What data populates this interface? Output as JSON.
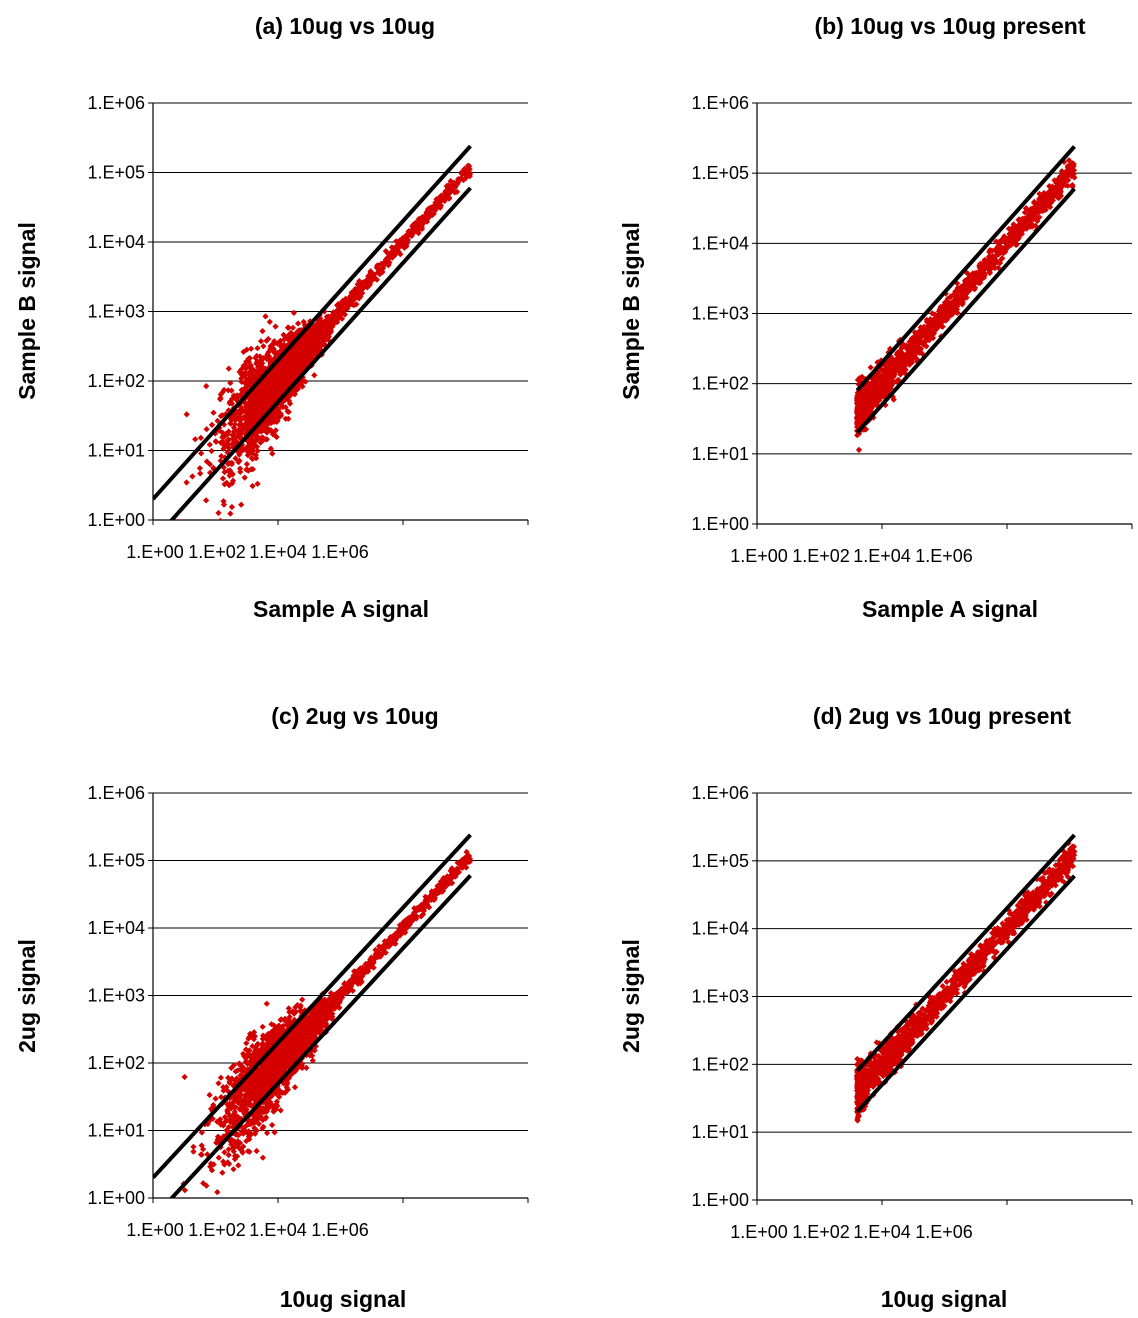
{
  "colors": {
    "points": "#d40000",
    "lines": "#000000",
    "grid": "#000000",
    "background": "#ffffff"
  },
  "chart_data": [
    {
      "type": "scatter",
      "title": "(a) 10ug vs 10ug",
      "xlabel": "Sample A signal",
      "ylabel": "Sample B signal",
      "scale": "log",
      "xlim": [
        1,
        1000000
      ],
      "ylim": [
        1,
        1000000
      ],
      "x_ticks": [
        "1.E+00",
        "1.E+02",
        "1.E+04",
        "1.E+06"
      ],
      "y_ticks": [
        "1.E+00",
        "1.E+01",
        "1.E+02",
        "1.E+03",
        "1.E+04",
        "1.E+05",
        "1.E+06"
      ],
      "grid": "horizontal",
      "point_range": [
        1,
        120000
      ],
      "reference_lines": [
        {
          "x": [
            1,
            120000
          ],
          "y": [
            2,
            240000
          ]
        },
        {
          "x": [
            1,
            120000
          ],
          "y": [
            0.5,
            60000
          ]
        }
      ]
    },
    {
      "type": "scatter",
      "title": "(b) 10ug vs 10ug present",
      "xlabel": "Sample A signal",
      "ylabel": "Sample B signal",
      "scale": "log",
      "xlim": [
        1,
        1000000
      ],
      "ylim": [
        1,
        1000000
      ],
      "x_ticks": [
        "1.E+00",
        "1.E+02",
        "1.E+04",
        "1.E+06"
      ],
      "y_ticks": [
        "1.E+00",
        "1.E+01",
        "1.E+02",
        "1.E+03",
        "1.E+04",
        "1.E+05",
        "1.E+06"
      ],
      "grid": "horizontal",
      "point_range": [
        40,
        120000
      ],
      "reference_lines": [
        {
          "x": [
            40,
            120000
          ],
          "y": [
            80,
            240000
          ]
        },
        {
          "x": [
            40,
            120000
          ],
          "y": [
            20,
            60000
          ]
        }
      ]
    },
    {
      "type": "scatter",
      "title": "(c) 2ug vs 10ug",
      "xlabel": "10ug signal",
      "ylabel": "2ug signal",
      "scale": "log",
      "xlim": [
        1,
        1000000
      ],
      "ylim": [
        1,
        1000000
      ],
      "x_ticks": [
        "1.E+00",
        "1.E+02",
        "1.E+04",
        "1.E+06"
      ],
      "y_ticks": [
        "1.E+00",
        "1.E+01",
        "1.E+02",
        "1.E+03",
        "1.E+04",
        "1.E+05",
        "1.E+06"
      ],
      "grid": "horizontal",
      "point_range": [
        1,
        120000
      ],
      "reference_lines": [
        {
          "x": [
            1,
            120000
          ],
          "y": [
            2,
            240000
          ]
        },
        {
          "x": [
            1,
            120000
          ],
          "y": [
            0.5,
            60000
          ]
        }
      ]
    },
    {
      "type": "scatter",
      "title": "(d) 2ug vs 10ug present",
      "xlabel": "10ug signal",
      "ylabel": "2ug signal",
      "scale": "log",
      "xlim": [
        1,
        1000000
      ],
      "ylim": [
        1,
        1000000
      ],
      "x_ticks": [
        "1.E+00",
        "1.E+02",
        "1.E+04",
        "1.E+06"
      ],
      "y_ticks": [
        "1.E+00",
        "1.E+01",
        "1.E+02",
        "1.E+03",
        "1.E+04",
        "1.E+05",
        "1.E+06"
      ],
      "grid": "horizontal",
      "point_range": [
        40,
        120000
      ],
      "reference_lines": [
        {
          "x": [
            40,
            120000
          ],
          "y": [
            80,
            240000
          ]
        },
        {
          "x": [
            40,
            120000
          ],
          "y": [
            20,
            60000
          ]
        }
      ]
    }
  ]
}
